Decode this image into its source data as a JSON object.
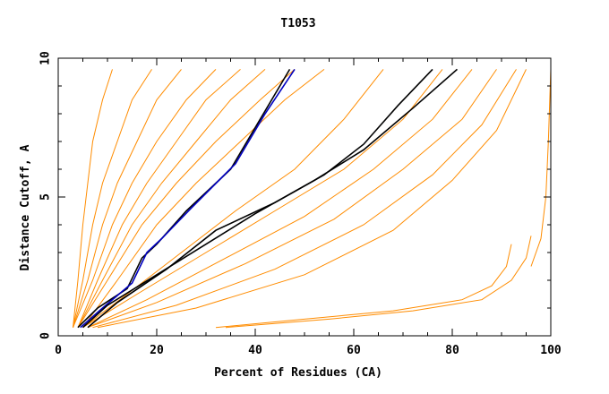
{
  "chart_data": {
    "type": "line",
    "title": "T1053",
    "xlabel": "Percent of Residues (CA)",
    "ylabel": "Distance Cutoff, A",
    "xlim": [
      0,
      100
    ],
    "ylim": [
      0,
      10
    ],
    "xticks": [
      0,
      20,
      40,
      60,
      80,
      100
    ],
    "yticks": [
      0,
      5,
      10
    ],
    "x_minor_step": 5,
    "y_minor_step": 1,
    "grid": false,
    "legend": "none",
    "colors": {
      "bundle": "#ff8c00",
      "highlight_black": "#000000",
      "highlight_blue": "#0000c0"
    },
    "series": [
      {
        "x": [
          3,
          4,
          5,
          6,
          7,
          9,
          11
        ],
        "y": [
          0.3,
          2,
          4,
          5.5,
          7,
          8.5,
          9.6
        ]
      },
      {
        "x": [
          3,
          5,
          7,
          9,
          12,
          15,
          19
        ],
        "y": [
          0.3,
          2,
          4,
          5.5,
          7,
          8.5,
          9.6
        ]
      },
      {
        "x": [
          3,
          6,
          9,
          12,
          16,
          20,
          25
        ],
        "y": [
          0.3,
          2,
          4,
          5.5,
          7,
          8.5,
          9.6
        ]
      },
      {
        "x": [
          3,
          7,
          11,
          15,
          20,
          26,
          32
        ],
        "y": [
          0.3,
          2,
          4,
          5.5,
          7,
          8.5,
          9.6
        ]
      },
      {
        "x": [
          4,
          8,
          13,
          18,
          24,
          30,
          37
        ],
        "y": [
          0.3,
          2,
          4,
          5.5,
          7,
          8.5,
          9.6
        ]
      },
      {
        "x": [
          4,
          9,
          15,
          21,
          28,
          35,
          42
        ],
        "y": [
          0.3,
          2,
          4,
          5.5,
          7,
          8.5,
          9.6
        ]
      },
      {
        "x": [
          4,
          10,
          17,
          24,
          32,
          41,
          48
        ],
        "y": [
          0.3,
          2,
          4,
          5.5,
          7,
          8.5,
          9.6
        ]
      },
      {
        "x": [
          5,
          12,
          20,
          28,
          37,
          46,
          54
        ],
        "y": [
          0.3,
          2,
          4,
          5.5,
          7,
          8.5,
          9.6
        ]
      },
      {
        "x": [
          5,
          14,
          25,
          36,
          48,
          58,
          66
        ],
        "y": [
          0.3,
          1.5,
          3,
          4.5,
          6,
          7.8,
          9.6
        ]
      },
      {
        "x": [
          5,
          16,
          30,
          44,
          58,
          70,
          78
        ],
        "y": [
          0.3,
          1.5,
          3,
          4.5,
          6,
          7.8,
          9.6
        ]
      },
      {
        "x": [
          6,
          18,
          34,
          50,
          64,
          76,
          84
        ],
        "y": [
          0.3,
          1.3,
          2.8,
          4.3,
          6,
          7.8,
          9.6
        ]
      },
      {
        "x": [
          6,
          20,
          38,
          56,
          70,
          82,
          89
        ],
        "y": [
          0.3,
          1.2,
          2.6,
          4.2,
          6,
          7.8,
          9.6
        ]
      },
      {
        "x": [
          7,
          24,
          44,
          62,
          76,
          86,
          93
        ],
        "y": [
          0.3,
          1.1,
          2.4,
          4,
          5.8,
          7.6,
          9.6
        ]
      },
      {
        "x": [
          8,
          28,
          50,
          68,
          80,
          89,
          95
        ],
        "y": [
          0.3,
          1,
          2.2,
          3.8,
          5.6,
          7.4,
          9.6
        ]
      },
      {
        "x": [
          32,
          50,
          68,
          82,
          88,
          91,
          92
        ],
        "y": [
          0.3,
          0.6,
          0.9,
          1.3,
          1.8,
          2.5,
          3.3
        ]
      },
      {
        "x": [
          34,
          55,
          72,
          86,
          92,
          95,
          96
        ],
        "y": [
          0.3,
          0.6,
          0.9,
          1.3,
          2,
          2.8,
          3.6
        ]
      },
      {
        "x": [
          96,
          98,
          99,
          99.5,
          100
        ],
        "y": [
          2.5,
          3.5,
          5,
          7,
          9.6
        ]
      }
    ],
    "highlight_series": [
      {
        "color": "#000000",
        "x": [
          4,
          8,
          14,
          17,
          20,
          26,
          35,
          41,
          47
        ],
        "y": [
          0.3,
          1,
          1.7,
          2.8,
          3.3,
          4.5,
          6,
          7.8,
          9.6
        ]
      },
      {
        "color": "#0000c0",
        "x": [
          4.5,
          9,
          15,
          18,
          21,
          27,
          36,
          42,
          48
        ],
        "y": [
          0.3,
          1,
          1.9,
          3,
          3.5,
          4.6,
          6.2,
          8,
          9.6
        ]
      },
      {
        "color": "#000000",
        "x": [
          5,
          10,
          20,
          30,
          40,
          52,
          62,
          72,
          81
        ],
        "y": [
          0.3,
          1.1,
          2.2,
          3.3,
          4.4,
          5.6,
          6.7,
          8.2,
          9.6
        ]
      },
      {
        "color": "#000000",
        "x": [
          6,
          12,
          22,
          32,
          44,
          54,
          62,
          69,
          76
        ],
        "y": [
          0.3,
          1.2,
          2.4,
          3.8,
          4.8,
          5.8,
          6.9,
          8.3,
          9.6
        ]
      }
    ]
  }
}
